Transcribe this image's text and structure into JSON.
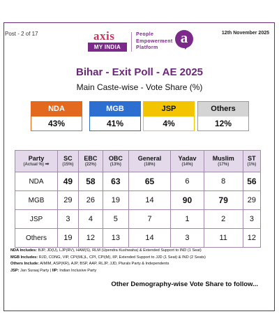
{
  "header": {
    "post_count": "Post - 2 of 17",
    "date": "12th November 2025",
    "brand_axis": "axis",
    "brand_myindia": "MY INDIA",
    "brand_tagline_1": "People",
    "brand_tagline_2": "Empowerment",
    "brand_tagline_3": "Platform",
    "brand_a": "a"
  },
  "title": "Bihar - Exit Poll - AE 2025",
  "subtitle": "Main Caste-wise - Vote Share (%)",
  "summary": [
    {
      "party": "NDA",
      "share": "43%",
      "color": "#e2691e"
    },
    {
      "party": "MGB",
      "share": "41%",
      "color": "#2c6fd0"
    },
    {
      "party": "JSP",
      "share": "4%",
      "color": "#f2c500"
    },
    {
      "party": "Others",
      "share": "12%",
      "color": "#d4d4d4"
    }
  ],
  "table": {
    "corner_label": "Party",
    "corner_sub": "(Actual %)",
    "corner_arrow": "➡",
    "columns": [
      {
        "name": "SC",
        "actual": "(15%)"
      },
      {
        "name": "EBC",
        "actual": "(22%)"
      },
      {
        "name": "OBC",
        "actual": "(13%)"
      },
      {
        "name": "General",
        "actual": "(18%)"
      },
      {
        "name": "Yadav",
        "actual": "(14%)"
      },
      {
        "name": "Muslim",
        "actual": "(17%)"
      },
      {
        "name": "ST",
        "actual": "(1%)"
      }
    ],
    "rows": [
      {
        "party": "NDA",
        "values": [
          "49",
          "58",
          "63",
          "65",
          "6",
          "8",
          "56"
        ]
      },
      {
        "party": "MGB",
        "values": [
          "29",
          "26",
          "19",
          "14",
          "90",
          "79",
          "29"
        ]
      },
      {
        "party": "JSP",
        "values": [
          "3",
          "4",
          "5",
          "7",
          "1",
          "2",
          "3"
        ]
      },
      {
        "party": "Others",
        "values": [
          "19",
          "12",
          "13",
          "14",
          "3",
          "11",
          "12"
        ]
      }
    ]
  },
  "notes": {
    "nda_label": "NDA Includes:",
    "nda_text": "BJP, JD(U), LJP(RV), HAM(S), RLM (Upendra Kushwaha) & Extended Support to IND (1 Seat)",
    "mgb_label": "MGB Includes:",
    "mgb_text": "RJD, CONG, VIP, CPI(ML)L, CPI, CPI(M), IIP, Extended Support to JJD (1 Seat) & IND (2 Seats)",
    "oth_label": "Others Include:",
    "oth_text": "AIMIM, ASP(KR), AJP, BSP, AAP, RLJP, JJD, Plurals Party & Independents",
    "jsp_label": "JSP:",
    "jsp_text": "Jan Suraaj Party",
    "iip_label": "IIP:",
    "iip_text": "Indian Inclusive Party",
    "follow": "Other Demography-wise Vote Share to follow..."
  }
}
